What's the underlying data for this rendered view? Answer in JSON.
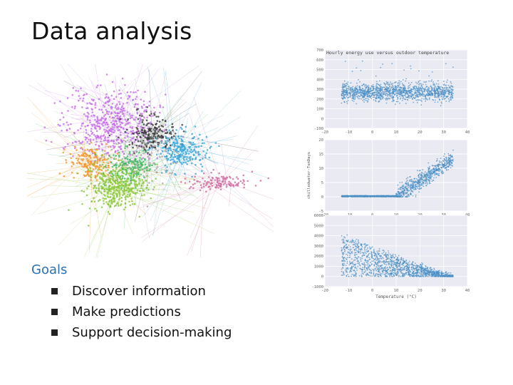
{
  "slide": {
    "title": "Data analysis",
    "goals_heading": "Goals",
    "goals": [
      "Discover information",
      "Make predictions",
      "Support decision-making"
    ]
  },
  "network_graph": {
    "cluster_colors": [
      "#c66ee8",
      "#3a3a3a",
      "#3aa6d8",
      "#f0962a",
      "#3bb85a",
      "#8ac83a",
      "#d06aa0",
      "#a8a8a8"
    ]
  },
  "chart_data": [
    {
      "type": "scatter",
      "title": "Hourly energy use versus outdoor temperature",
      "xlabel": "",
      "ylabel": "",
      "xlim": [
        -20,
        40
      ],
      "ylim": [
        -100,
        700
      ],
      "xticks": [
        "-20",
        "-10",
        "0",
        "10",
        "20",
        "30",
        "40"
      ],
      "yticks": [
        "700",
        "600",
        "500",
        "400",
        "300",
        "200",
        "100",
        "0",
        "-100"
      ],
      "point_color": "#4a8fc4",
      "grid": true
    },
    {
      "type": "scatter",
      "title": "",
      "xlabel": "",
      "ylabel": "chilledwater-TonDays",
      "xlim": [
        -20,
        40
      ],
      "ylim": [
        -5,
        20
      ],
      "xticks": [
        "-20",
        "-10",
        "0",
        "10",
        "20",
        "30",
        "40"
      ],
      "yticks": [
        "20",
        "15",
        "10",
        "5",
        "0",
        "-5"
      ],
      "point_color": "#4a8fc4",
      "grid": true
    },
    {
      "type": "scatter",
      "title": "",
      "xlabel": "Temperature (°C)",
      "ylabel": "",
      "xlim": [
        -20,
        40
      ],
      "ylim": [
        -1000,
        6000
      ],
      "xticks": [
        "-20",
        "-10",
        "0",
        "10",
        "20",
        "30",
        "40"
      ],
      "yticks": [
        "6000",
        "5000",
        "4000",
        "3000",
        "2000",
        "1000",
        "0",
        "-1000"
      ],
      "point_color": "#4a8fc4",
      "grid": true
    }
  ]
}
